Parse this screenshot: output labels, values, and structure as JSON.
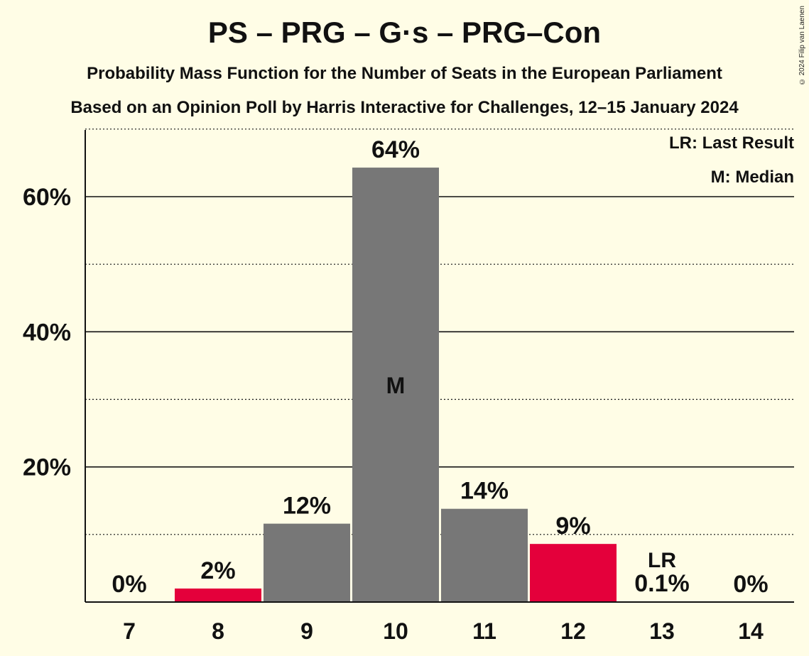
{
  "title": "PS – PRG – G·s – PRG–Con",
  "subtitle1": "Probability Mass Function for the Number of Seats in the European Parliament",
  "subtitle2": "Based on an Opinion Poll by Harris Interactive for Challenges, 12–15 January 2024",
  "copyright": "© 2024 Filip van Laenen",
  "legend": {
    "lr": "LR: Last Result",
    "m": "M: Median"
  },
  "colors": {
    "background": "#FFFDE6",
    "bar": "#777777",
    "highlight": "#E4003B"
  },
  "chart_data": {
    "type": "bar",
    "categories": [
      "7",
      "8",
      "9",
      "10",
      "11",
      "12",
      "13",
      "14"
    ],
    "values": [
      0,
      2,
      11.6,
      64.3,
      13.8,
      8.6,
      0.1,
      0
    ],
    "data_labels": [
      "0%",
      "2%",
      "12%",
      "64%",
      "14%",
      "9%",
      "0.1%",
      "0%"
    ],
    "bar_colors": [
      "#777777",
      "#E4003B",
      "#777777",
      "#777777",
      "#777777",
      "#E4003B",
      "#777777",
      "#777777"
    ],
    "yticks": [
      20,
      40,
      60
    ],
    "ytick_labels": [
      "20%",
      "40%",
      "60%"
    ],
    "ylim": [
      0,
      70
    ],
    "median_category": "10",
    "median_marker": "M",
    "last_result_category": "13",
    "last_result_marker": "LR",
    "grid": "solid major lines at 20% steps, dotted minor lines at 10% steps",
    "legend_position": "top-right"
  }
}
